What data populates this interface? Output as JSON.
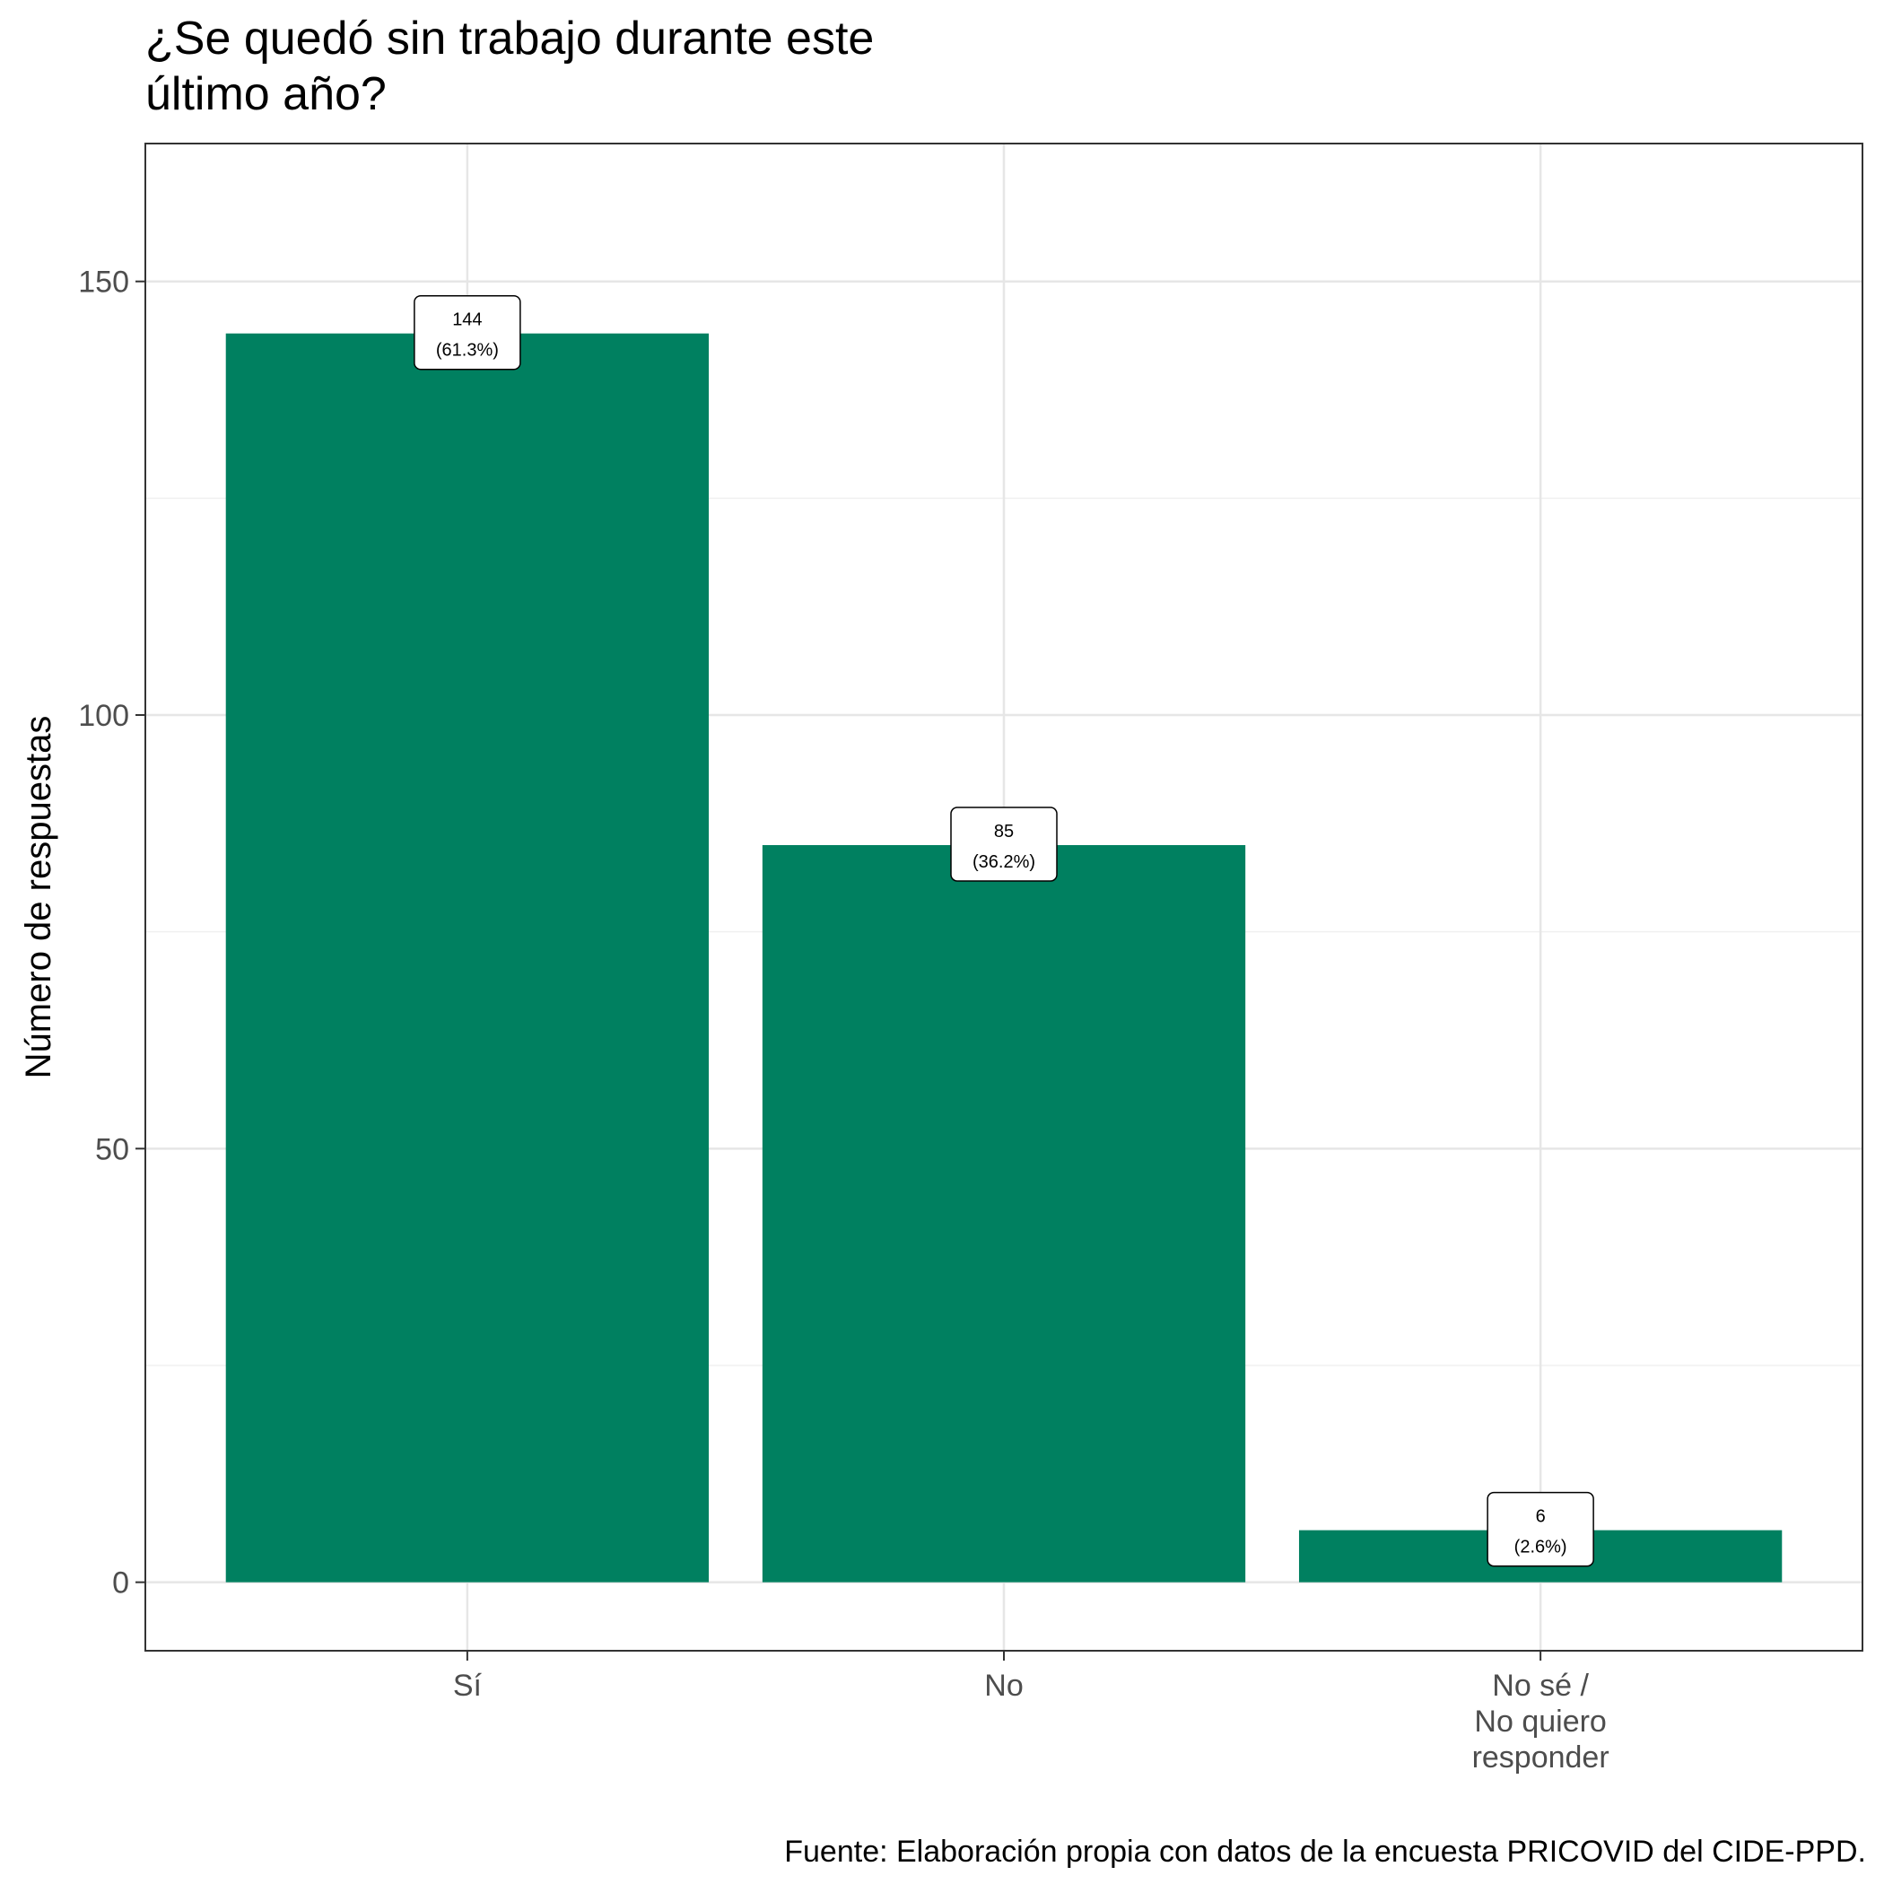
{
  "chart_data": {
    "type": "bar",
    "title": "¿Se quedó sin trabajo durante este último año?",
    "title_lines": [
      "¿Se quedó sin trabajo durante este",
      "último año?"
    ],
    "xlabel": "",
    "ylabel": "Número de respuestas",
    "caption": "Fuente: Elaboración propia con datos de la encuesta PRICOVID del CIDE-PPD.",
    "categories": [
      {
        "lines": [
          "Sí"
        ]
      },
      {
        "lines": [
          "No"
        ]
      },
      {
        "lines": [
          "No sé /",
          "No quiero",
          "responder"
        ]
      }
    ],
    "values": [
      144,
      85,
      6
    ],
    "labels": [
      {
        "count": "144",
        "percent": "(61.3%)"
      },
      {
        "count": "85",
        "percent": "(36.2%)"
      },
      {
        "count": "6",
        "percent": "(2.6%)"
      }
    ],
    "ylim": [
      -7.9,
      165.9
    ],
    "yticks": [
      0,
      50,
      100,
      150
    ],
    "grid": true,
    "bar_color": "#008060"
  }
}
